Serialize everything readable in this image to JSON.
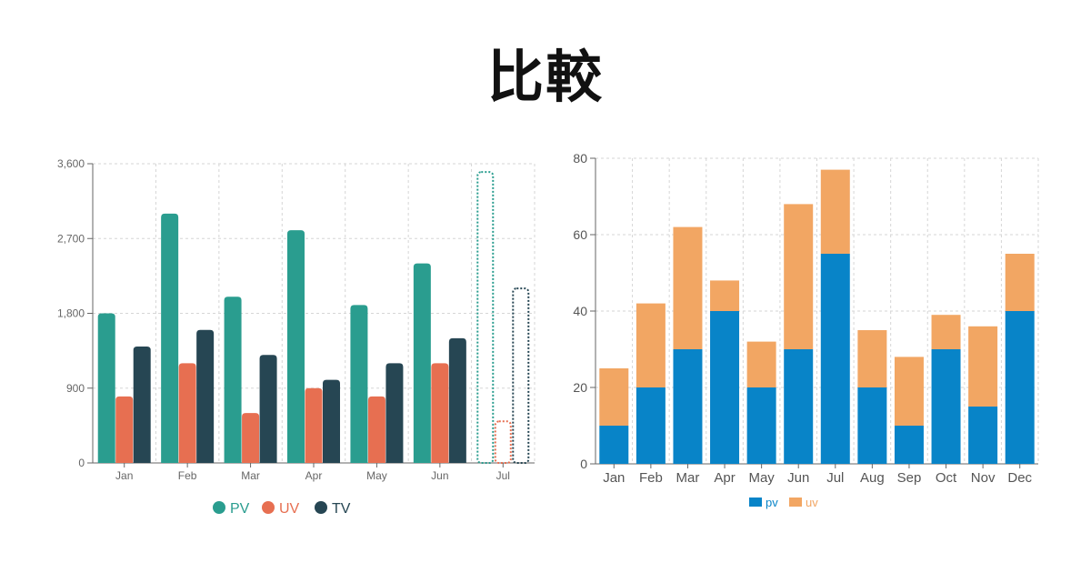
{
  "header": {
    "title": "比較"
  },
  "colors": {
    "pv_left": "#2a9d8f",
    "uv_left": "#e76f51",
    "tv_left": "#264653",
    "pv_right": "#0884c8",
    "uv_right": "#f2a663",
    "grid": "#d6d6d6",
    "axis_text_left": "#666666",
    "axis_text_right": "#555555"
  },
  "chart_data": [
    {
      "type": "bar",
      "categories": [
        "Jan",
        "Feb",
        "Mar",
        "Apr",
        "May",
        "Jun",
        "Jul"
      ],
      "series": [
        {
          "name": "PV",
          "values": [
            1800,
            3000,
            2000,
            2800,
            1900,
            2400,
            3500
          ],
          "color": "#2a9d8f"
        },
        {
          "name": "UV",
          "values": [
            800,
            1200,
            600,
            900,
            800,
            1200,
            500
          ],
          "color": "#e76f51"
        },
        {
          "name": "TV",
          "values": [
            1400,
            1600,
            1300,
            1000,
            1200,
            1500,
            2100
          ],
          "color": "#264653"
        }
      ],
      "highlighted_category": "Jul",
      "highlight_style": "dashed-outline",
      "yticks": [
        "0",
        "900",
        "1,800",
        "2,700",
        "3,600"
      ],
      "ylim": [
        0,
        3600
      ],
      "grid": true,
      "legend": "bottom-center"
    },
    {
      "type": "bar",
      "stacked": true,
      "categories": [
        "Jan",
        "Feb",
        "Mar",
        "Apr",
        "May",
        "Jun",
        "Jul",
        "Aug",
        "Sep",
        "Oct",
        "Nov",
        "Dec"
      ],
      "series": [
        {
          "name": "pv",
          "values": [
            10,
            20,
            30,
            40,
            20,
            30,
            55,
            20,
            10,
            30,
            15,
            40
          ],
          "color": "#0884c8"
        },
        {
          "name": "uv",
          "values": [
            15,
            22,
            32,
            8,
            12,
            38,
            22,
            15,
            18,
            9,
            21,
            15
          ],
          "color": "#f2a663"
        }
      ],
      "yticks": [
        "0",
        "20",
        "40",
        "60",
        "80"
      ],
      "ylim": [
        0,
        80
      ],
      "grid": true,
      "legend": "bottom-center"
    }
  ]
}
